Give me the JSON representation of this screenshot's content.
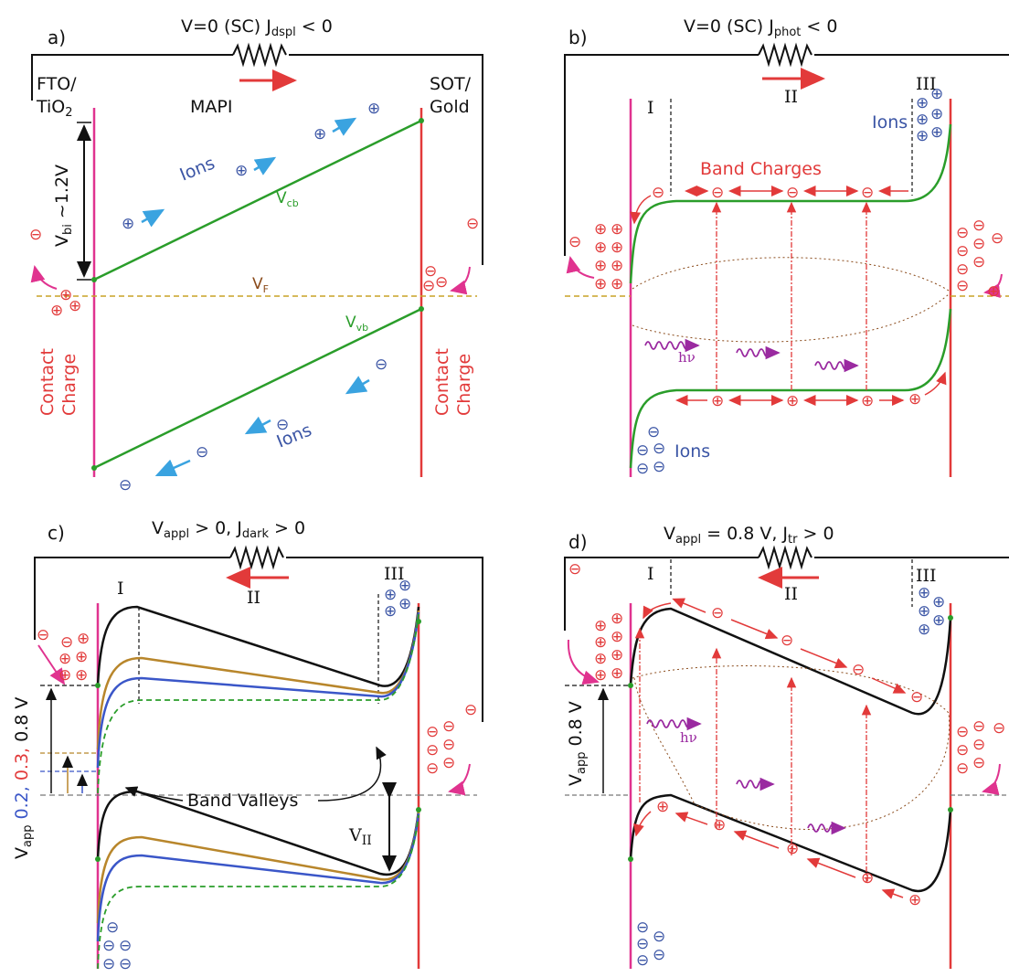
{
  "colors": {
    "electrode_left": "#e0338f",
    "electrode_right": "#e23a3a",
    "band_green": "#2a9d2a",
    "band_black": "#111111",
    "band_gold": "#b8862b",
    "band_blue": "#3a56c8",
    "ion_blue": "#3b55a5",
    "charge_red": "#e23a3a",
    "fermi": "#c9a227",
    "photon": "#9a2aa0"
  },
  "panels": {
    "a": {
      "label": "a)",
      "circuit_title": "V=0 (SC) J",
      "circuit_sub": "dspl",
      "circuit_tail": " < 0",
      "left_electrode": [
        "FTO/",
        "TiO"
      ],
      "left_sub": "2",
      "right_electrode": [
        "SOT/",
        "Gold"
      ],
      "material": "MAPI",
      "ions_top": "Ions",
      "ions_bottom": "Ions",
      "vbi": "V",
      "vbi_sub": "bi",
      "vbi_tail": " ~1.2V",
      "vcb": "V",
      "vcb_sub": "cb",
      "vvb": "V",
      "vvb_sub": "vb",
      "vf": "V",
      "vf_sub": "F",
      "contact_left": [
        "Contact",
        "Charge"
      ],
      "contact_right": [
        "Contact",
        "Charge"
      ]
    },
    "b": {
      "label": "b)",
      "circuit_title": "V=0 (SC) J",
      "circuit_sub": "phot",
      "circuit_tail": " < 0",
      "region_I": "I",
      "region_II": "II",
      "region_III": "III",
      "ions_right": "Ions",
      "ions_left": "Ions",
      "band_charges": "Band Charges",
      "hv": "hν"
    },
    "c": {
      "label": "c)",
      "circuit_title": "V",
      "circuit_sub1": "appl",
      "circuit_mid": " > 0, J",
      "circuit_sub2": "dark",
      "circuit_tail": " > 0",
      "region_I": "I",
      "region_II": "II",
      "region_III": "III",
      "band_valleys": "Band Valleys",
      "v_ii": "V",
      "v_ii_sub": "II",
      "vapp": "V",
      "vapp_sub": "app",
      "vapp_values": [
        "0.2,",
        "0.3,",
        "0.8 V"
      ]
    },
    "d": {
      "label": "d)",
      "circuit_title": "V",
      "circuit_sub1": "appl",
      "circuit_mid": " = 0.8 V, J",
      "circuit_sub2": "tr",
      "circuit_tail": " > 0",
      "region_I": "I",
      "region_II": "II",
      "region_III": "III",
      "vapp": "V",
      "vapp_sub": "app",
      "vapp_value": " 0.8 V",
      "hv": "hν"
    }
  },
  "symbols": {
    "plus": "⊕",
    "minus": "⊖"
  }
}
